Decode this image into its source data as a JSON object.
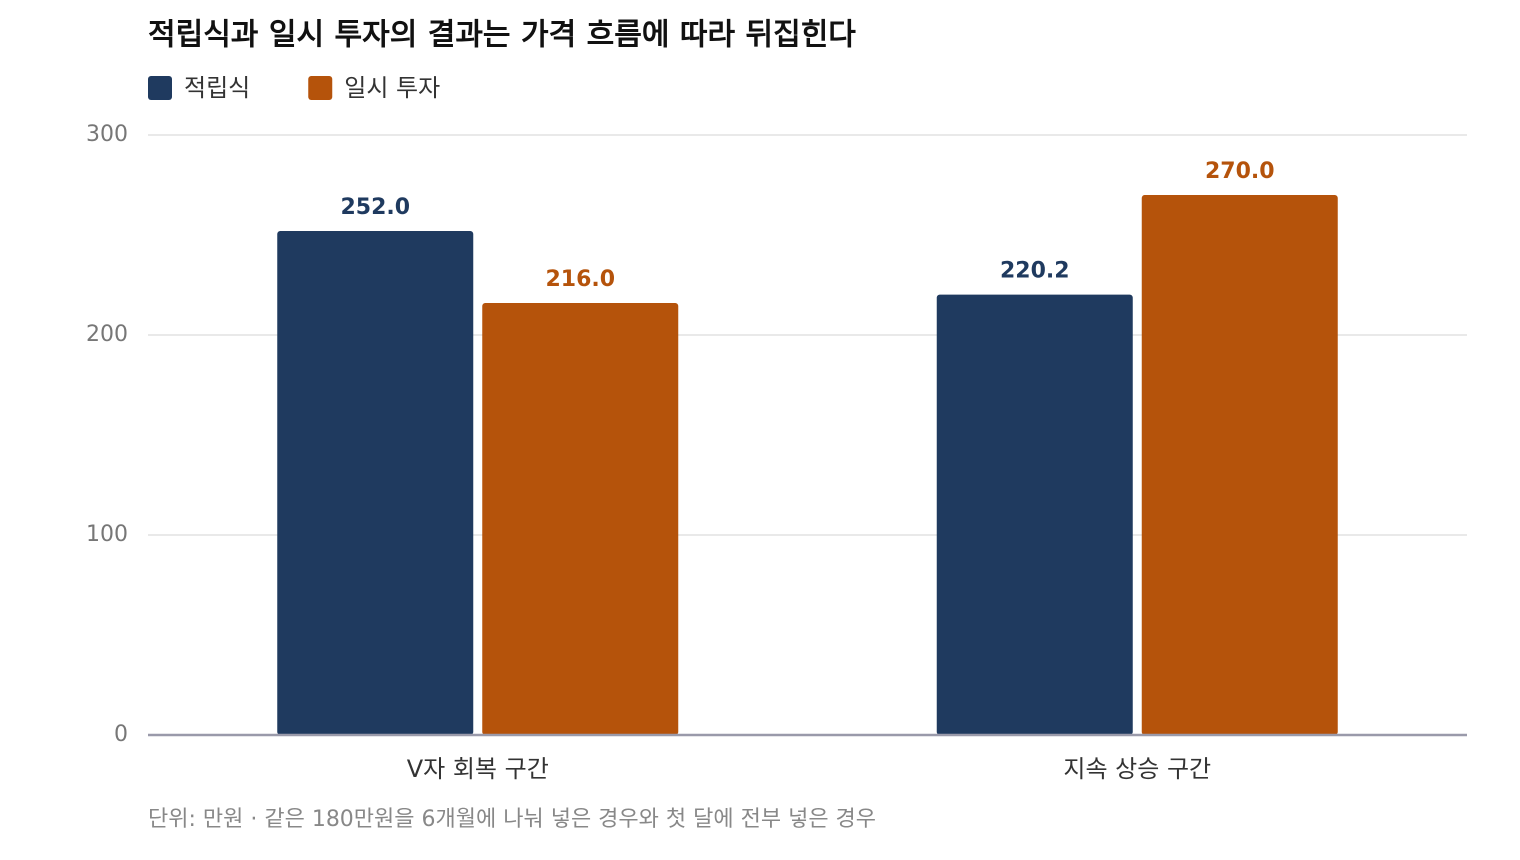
{
  "chart_data": {
    "type": "bar",
    "title": "적립식과 일시 투자의 결과는 가격 흐름에 따라 뒤집힌다",
    "categories": [
      "V자 회복 구간",
      "지속 상승 구간"
    ],
    "series": [
      {
        "name": "적립식",
        "color": "#1f3a5f",
        "values": [
          252,
          220.2
        ],
        "value_labels": [
          "252.0",
          "220.2"
        ]
      },
      {
        "name": "일시 투자",
        "color": "#b5530b",
        "values": [
          216,
          270
        ],
        "value_labels": [
          "216.0",
          "270.0"
        ]
      }
    ],
    "ylim": [
      0,
      300
    ],
    "yticks": [
      0,
      100,
      200,
      300
    ],
    "grid": true,
    "note": "단위: 만원 · 같은 180만원을 6개월에 나눠 넣은 경우와 첫 달에 전부 넣은 경우"
  }
}
